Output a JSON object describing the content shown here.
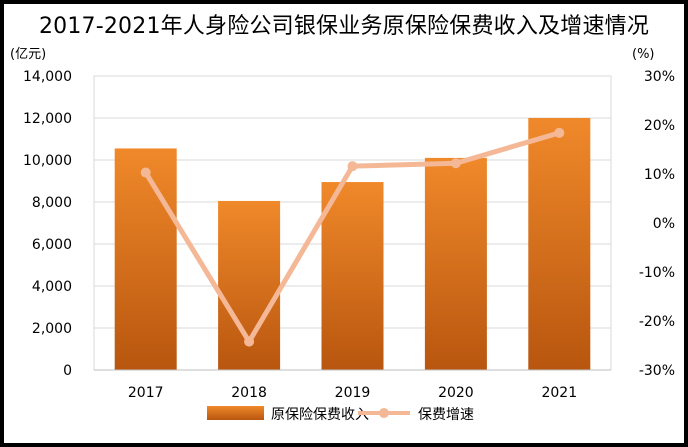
{
  "chart_data": {
    "type": "bar",
    "title": "2017-2021年人身险公司银保业务原保险保费收入及增速情况",
    "categories": [
      "2017",
      "2018",
      "2019",
      "2020",
      "2021"
    ],
    "series": [
      {
        "name": "原保险保费收入",
        "type": "bar",
        "axis": "left",
        "values": [
          10550,
          8050,
          8950,
          10100,
          12000
        ]
      },
      {
        "name": "保费增速",
        "type": "line",
        "axis": "right",
        "values": [
          10.3,
          -24.2,
          11.6,
          12.2,
          18.4
        ]
      }
    ],
    "ylabel": "(亿元)",
    "ylabel_right": "(%)",
    "ylim": [
      0,
      14000
    ],
    "y_ticks": [
      "0",
      "2,000",
      "4,000",
      "6,000",
      "8,000",
      "10,000",
      "12,000",
      "14,000"
    ],
    "ylim_right": [
      -30,
      30
    ],
    "y_ticks_right": [
      "-30%",
      "-20%",
      "-10%",
      "0%",
      "10%",
      "20%",
      "30%"
    ],
    "legend_position": "bottom",
    "grid": true
  },
  "colors": {
    "bar_top": "#f0892a",
    "bar_bottom": "#b8560f",
    "line": "#f5b896",
    "grid": "#d9d9d9"
  }
}
